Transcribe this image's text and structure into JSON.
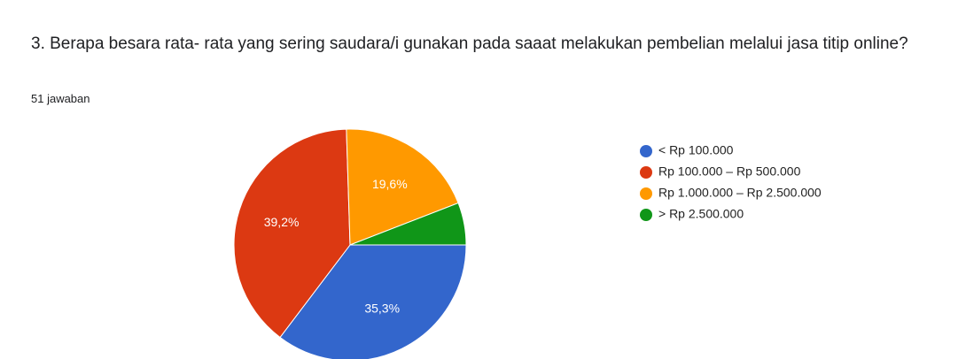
{
  "chart_data": {
    "type": "pie",
    "title": "3. Berapa besara rata- rata yang sering saudara/i gunakan pada saaat melakukan pembelian melalui jasa titip online?",
    "subtitle": "51 jawaban",
    "categories": [
      "< Rp 100.000",
      "Rp 100.000 – Rp 500.000",
      "Rp 1.000.000 – Rp 2.500.000",
      "> Rp 2.500.000"
    ],
    "values": [
      35.3,
      39.2,
      19.6,
      5.9
    ],
    "value_labels": [
      "35,3%",
      "39,2%",
      "19,6%",
      null
    ],
    "colors": [
      "#3366cc",
      "#dc3912",
      "#ff9900",
      "#109618"
    ]
  }
}
